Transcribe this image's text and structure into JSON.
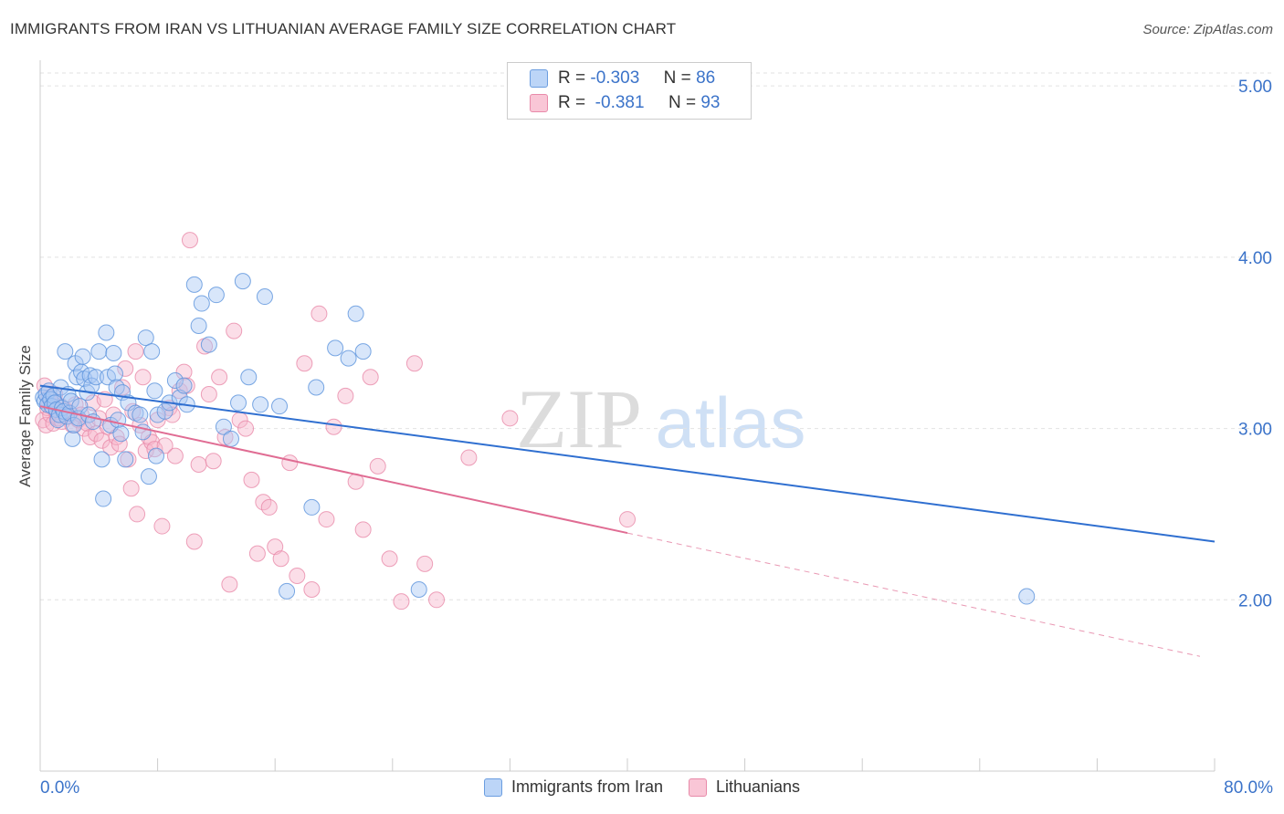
{
  "header": {
    "title": "IMMIGRANTS FROM IRAN VS LITHUANIAN AVERAGE FAMILY SIZE CORRELATION CHART",
    "source": "Source: ZipAtlas.com"
  },
  "legend": {
    "rows": [
      {
        "r_label": "R =",
        "r_value": "-0.303",
        "n_label": "N =",
        "n_value": "86"
      },
      {
        "r_label": "R =",
        "r_value": "-0.381",
        "n_label": "N =",
        "n_value": "93"
      }
    ]
  },
  "watermark": {
    "zip": "ZIP",
    "atlas": "atlas"
  },
  "chart_data": {
    "type": "scatter",
    "title": "IMMIGRANTS FROM IRAN VS LITHUANIAN AVERAGE FAMILY SIZE CORRELATION CHART",
    "xlabel": "",
    "ylabel": "Average Family Size",
    "xlim": [
      0,
      80
    ],
    "ylim": [
      1.0,
      5.15
    ],
    "x_tick_labels": [
      "0.0%",
      "80.0%"
    ],
    "y_ticks": [
      2.0,
      3.0,
      4.0,
      5.0
    ],
    "y_tick_labels": [
      "2.00",
      "3.00",
      "4.00",
      "5.00"
    ],
    "grid": true,
    "legend_position": "top-center",
    "colors": {
      "iran_fill": "#a8c8f5",
      "iran_stroke": "#5a92dc",
      "iran_line": "#2f6fd0",
      "lith_fill": "#f7b6cb",
      "lith_stroke": "#e88aa9",
      "lith_line": "#e06c93",
      "axis_text": "#3b73c9"
    },
    "series": [
      {
        "name": "Immigrants from Iran",
        "color": "#a8c8f5",
        "trend": {
          "x0": 0,
          "y0": 3.25,
          "x1": 80,
          "y1": 2.34
        },
        "points": [
          [
            0.2,
            3.18
          ],
          [
            0.3,
            3.16
          ],
          [
            0.4,
            3.2
          ],
          [
            0.5,
            3.14
          ],
          [
            0.6,
            3.22
          ],
          [
            0.7,
            3.17
          ],
          [
            0.8,
            3.13
          ],
          [
            0.9,
            3.19
          ],
          [
            1.0,
            3.15
          ],
          [
            1.1,
            3.11
          ],
          [
            1.2,
            3.05
          ],
          [
            1.3,
            3.08
          ],
          [
            1.4,
            3.24
          ],
          [
            1.5,
            3.12
          ],
          [
            1.6,
            3.1
          ],
          [
            1.7,
            3.45
          ],
          [
            1.8,
            3.07
          ],
          [
            1.9,
            3.2
          ],
          [
            2.0,
            3.09
          ],
          [
            2.1,
            3.16
          ],
          [
            2.2,
            2.94
          ],
          [
            2.3,
            3.02
          ],
          [
            2.4,
            3.38
          ],
          [
            2.5,
            3.3
          ],
          [
            2.6,
            3.06
          ],
          [
            2.7,
            3.13
          ],
          [
            2.8,
            3.33
          ],
          [
            2.9,
            3.42
          ],
          [
            3.0,
            3.29
          ],
          [
            3.2,
            3.21
          ],
          [
            3.3,
            3.08
          ],
          [
            3.4,
            3.31
          ],
          [
            3.5,
            3.25
          ],
          [
            3.6,
            3.04
          ],
          [
            3.8,
            3.3
          ],
          [
            4.0,
            3.45
          ],
          [
            4.2,
            2.82
          ],
          [
            4.3,
            2.59
          ],
          [
            4.5,
            3.56
          ],
          [
            4.6,
            3.3
          ],
          [
            4.8,
            3.02
          ],
          [
            5.0,
            3.44
          ],
          [
            5.1,
            3.32
          ],
          [
            5.2,
            3.24
          ],
          [
            5.3,
            3.05
          ],
          [
            5.5,
            2.97
          ],
          [
            5.6,
            3.21
          ],
          [
            5.8,
            2.82
          ],
          [
            6.0,
            3.15
          ],
          [
            6.5,
            3.09
          ],
          [
            6.8,
            3.08
          ],
          [
            7.0,
            2.98
          ],
          [
            7.2,
            3.53
          ],
          [
            7.4,
            2.72
          ],
          [
            7.6,
            3.45
          ],
          [
            7.8,
            3.22
          ],
          [
            7.9,
            2.84
          ],
          [
            8.0,
            3.08
          ],
          [
            8.5,
            3.1
          ],
          [
            8.8,
            3.15
          ],
          [
            9.2,
            3.28
          ],
          [
            9.5,
            3.18
          ],
          [
            9.8,
            3.25
          ],
          [
            10.0,
            3.14
          ],
          [
            10.5,
            3.84
          ],
          [
            10.8,
            3.6
          ],
          [
            11.0,
            3.73
          ],
          [
            11.5,
            3.49
          ],
          [
            12.0,
            3.78
          ],
          [
            12.5,
            3.01
          ],
          [
            13.0,
            2.94
          ],
          [
            13.5,
            3.15
          ],
          [
            13.8,
            3.86
          ],
          [
            14.2,
            3.3
          ],
          [
            15.0,
            3.14
          ],
          [
            15.3,
            3.77
          ],
          [
            16.3,
            3.13
          ],
          [
            16.8,
            2.05
          ],
          [
            18.5,
            2.54
          ],
          [
            18.8,
            3.24
          ],
          [
            20.1,
            3.47
          ],
          [
            21.0,
            3.41
          ],
          [
            21.5,
            3.67
          ],
          [
            22.0,
            3.45
          ],
          [
            25.8,
            2.06
          ],
          [
            67.2,
            2.02
          ]
        ]
      },
      {
        "name": "Lithuanians",
        "color": "#f7b6cb",
        "trend": {
          "x0": 0,
          "y0": 3.13,
          "x1": 40,
          "y1": 2.39
        },
        "trend_dashed": {
          "x0": 40,
          "y0": 2.39,
          "x1": 79,
          "y1": 1.67
        },
        "points": [
          [
            0.2,
            3.05
          ],
          [
            0.3,
            3.25
          ],
          [
            0.4,
            3.02
          ],
          [
            0.5,
            3.12
          ],
          [
            0.6,
            3.18
          ],
          [
            0.7,
            3.08
          ],
          [
            0.8,
            3.15
          ],
          [
            0.9,
            3.03
          ],
          [
            1.0,
            3.2
          ],
          [
            1.1,
            3.1
          ],
          [
            1.2,
            3.06
          ],
          [
            1.4,
            3.13
          ],
          [
            1.5,
            3.04
          ],
          [
            1.7,
            3.11
          ],
          [
            1.9,
            3.07
          ],
          [
            2.0,
            3.09
          ],
          [
            2.2,
            3.02
          ],
          [
            2.4,
            3.14
          ],
          [
            2.6,
            3.05
          ],
          [
            2.8,
            3.08
          ],
          [
            3.0,
            3.0
          ],
          [
            3.2,
            3.03
          ],
          [
            3.4,
            2.95
          ],
          [
            3.6,
            3.15
          ],
          [
            3.8,
            2.97
          ],
          [
            4.0,
            3.06
          ],
          [
            4.2,
            2.93
          ],
          [
            4.4,
            3.17
          ],
          [
            4.6,
            3.01
          ],
          [
            4.8,
            2.89
          ],
          [
            5.0,
            3.08
          ],
          [
            5.2,
            2.95
          ],
          [
            5.4,
            2.91
          ],
          [
            5.6,
            3.24
          ],
          [
            5.8,
            3.35
          ],
          [
            6.0,
            2.82
          ],
          [
            6.2,
            2.65
          ],
          [
            6.3,
            3.1
          ],
          [
            6.5,
            3.45
          ],
          [
            6.6,
            2.5
          ],
          [
            6.8,
            3.02
          ],
          [
            7.0,
            3.3
          ],
          [
            7.2,
            2.87
          ],
          [
            7.4,
            2.95
          ],
          [
            7.6,
            2.92
          ],
          [
            7.8,
            2.88
          ],
          [
            8.0,
            3.05
          ],
          [
            8.3,
            2.43
          ],
          [
            8.5,
            2.9
          ],
          [
            8.8,
            3.12
          ],
          [
            9.0,
            3.08
          ],
          [
            9.2,
            2.84
          ],
          [
            9.5,
            3.22
          ],
          [
            9.8,
            3.33
          ],
          [
            10.0,
            3.25
          ],
          [
            10.2,
            4.1
          ],
          [
            10.5,
            2.34
          ],
          [
            10.8,
            2.79
          ],
          [
            11.2,
            3.48
          ],
          [
            11.5,
            3.2
          ],
          [
            11.8,
            2.81
          ],
          [
            12.2,
            3.3
          ],
          [
            12.6,
            2.95
          ],
          [
            12.9,
            2.09
          ],
          [
            13.2,
            3.57
          ],
          [
            13.6,
            3.05
          ],
          [
            14.0,
            3.0
          ],
          [
            14.4,
            2.7
          ],
          [
            14.8,
            2.27
          ],
          [
            15.2,
            2.57
          ],
          [
            15.6,
            2.54
          ],
          [
            16.0,
            2.31
          ],
          [
            16.4,
            2.24
          ],
          [
            17.0,
            2.8
          ],
          [
            17.5,
            2.14
          ],
          [
            18.0,
            3.38
          ],
          [
            18.5,
            2.06
          ],
          [
            19.0,
            3.67
          ],
          [
            19.5,
            2.47
          ],
          [
            20.0,
            3.01
          ],
          [
            20.8,
            3.19
          ],
          [
            21.5,
            2.69
          ],
          [
            22.0,
            2.41
          ],
          [
            22.5,
            3.3
          ],
          [
            23.0,
            2.78
          ],
          [
            23.8,
            2.24
          ],
          [
            24.6,
            1.99
          ],
          [
            25.5,
            3.38
          ],
          [
            26.2,
            2.21
          ],
          [
            27.0,
            2.0
          ],
          [
            29.2,
            2.83
          ],
          [
            32.0,
            3.06
          ],
          [
            40.0,
            2.47
          ]
        ]
      }
    ]
  },
  "bottom_legend": {
    "items": [
      {
        "label": "Immigrants from Iran"
      },
      {
        "label": "Lithuanians"
      }
    ]
  }
}
